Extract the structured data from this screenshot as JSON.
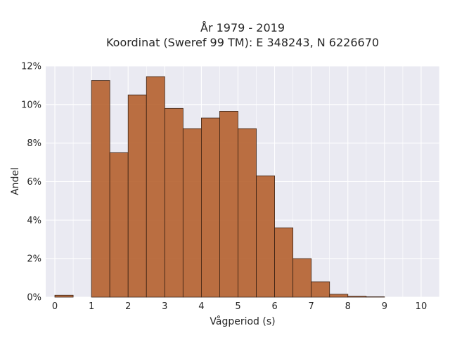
{
  "chart_data": {
    "type": "bar",
    "title_line1": "År 1979 - 2019",
    "title_line2": "Koordinat (Sweref 99 TM): E 348243, N 6226670",
    "xlabel": "Vågperiod (s)",
    "ylabel": "Andel",
    "xlim": [
      -0.25,
      10.5
    ],
    "ylim": [
      0,
      12
    ],
    "x_ticks": [
      0,
      1,
      2,
      3,
      4,
      5,
      6,
      7,
      8,
      9,
      10
    ],
    "y_ticks": [
      0,
      2,
      4,
      6,
      8,
      10,
      12
    ],
    "y_tick_labels": [
      "0%",
      "2%",
      "4%",
      "6%",
      "8%",
      "10%",
      "12%"
    ],
    "bin_width": 0.5,
    "bin_starts": [
      0,
      0.5,
      1,
      1.5,
      2,
      2.5,
      3,
      3.5,
      4,
      4.5,
      5,
      5.5,
      6,
      6.5,
      7,
      7.5,
      8,
      8.5,
      9,
      9.5
    ],
    "values": [
      0.1,
      0,
      11.25,
      7.5,
      10.5,
      11.45,
      9.8,
      8.75,
      9.3,
      9.65,
      8.75,
      6.3,
      3.6,
      2.0,
      0.8,
      0.15,
      0.05,
      0.02,
      0,
      0
    ],
    "bar_color": "#b5612d",
    "bar_edge_color": "#3a2214",
    "background_color": "#eaeaf2",
    "grid": true,
    "grid_color": "#ffffff"
  }
}
